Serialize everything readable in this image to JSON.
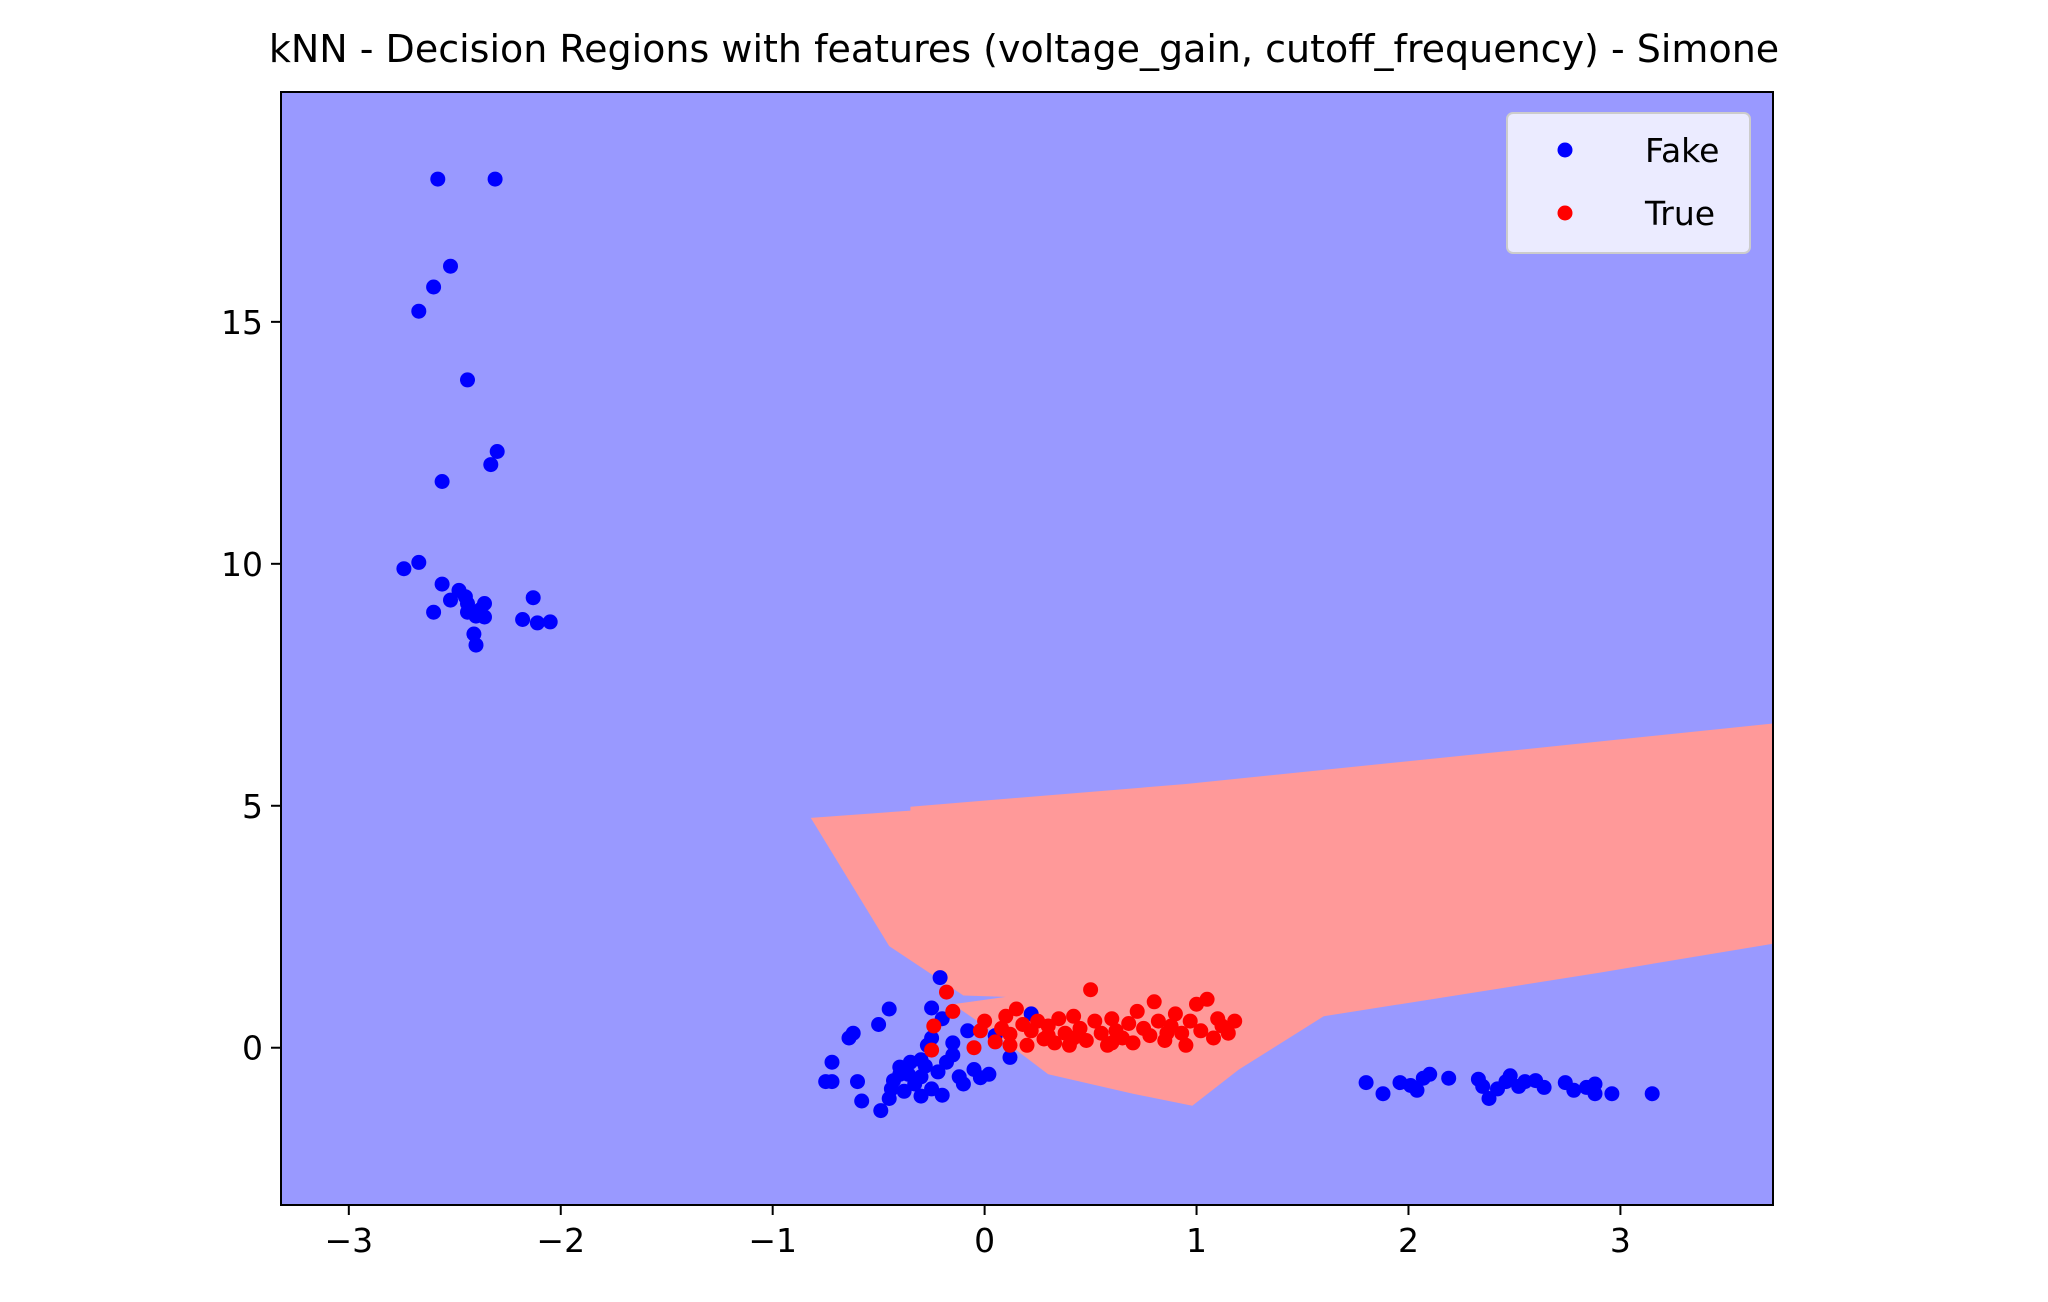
{
  "chart_data": {
    "type": "scatter",
    "title": "kNN - Decision Regions with features (voltage_gain, cutoff_frequency) - Simone",
    "xlabel": "",
    "ylabel": "",
    "xlim": [
      -3.32,
      3.72
    ],
    "ylim": [
      -3.25,
      19.75
    ],
    "x_ticks": [
      -3,
      -2,
      -1,
      0,
      1,
      2,
      3
    ],
    "x_tick_labels": [
      "−3",
      "−2",
      "−1",
      "0",
      "1",
      "2",
      "3"
    ],
    "y_ticks": [
      0,
      5,
      10,
      15
    ],
    "y_tick_labels": [
      "0",
      "5",
      "10",
      "15"
    ],
    "grid": false,
    "legend_position": "upper-right",
    "colors": {
      "background_region": "#9999ff",
      "true_region": "#ff9999",
      "fake_point": "#0000ff",
      "true_point": "#ff0000"
    },
    "decision_region_true": [
      [
        -0.82,
        4.75
      ],
      [
        -0.35,
        4.9
      ],
      [
        -0.35,
        4.98
      ],
      [
        0.95,
        5.45
      ],
      [
        2.4,
        6.1
      ],
      [
        3.72,
        6.7
      ],
      [
        3.72,
        2.15
      ],
      [
        2.9,
        1.55
      ],
      [
        1.6,
        0.65
      ],
      [
        1.2,
        -0.45
      ],
      [
        0.98,
        -1.2
      ],
      [
        0.7,
        -0.95
      ],
      [
        0.3,
        -0.55
      ],
      [
        0.0,
        0.45
      ],
      [
        -0.15,
        0.9
      ],
      [
        0.1,
        1.05
      ],
      [
        -0.1,
        1.08
      ],
      [
        -0.45,
        2.1
      ]
    ],
    "series": [
      {
        "name": "Fake",
        "points": [
          [
            -2.58,
            17.95
          ],
          [
            -2.31,
            17.95
          ],
          [
            -2.52,
            16.15
          ],
          [
            -2.6,
            15.72
          ],
          [
            -2.67,
            15.22
          ],
          [
            -2.44,
            13.8
          ],
          [
            -2.3,
            12.32
          ],
          [
            -2.33,
            12.05
          ],
          [
            -2.56,
            11.7
          ],
          [
            -2.74,
            9.9
          ],
          [
            -2.67,
            10.03
          ],
          [
            -2.56,
            9.58
          ],
          [
            -2.48,
            9.45
          ],
          [
            -2.45,
            9.32
          ],
          [
            -2.52,
            9.25
          ],
          [
            -2.44,
            9.18
          ],
          [
            -2.36,
            9.18
          ],
          [
            -2.38,
            9.05
          ],
          [
            -2.44,
            9.0
          ],
          [
            -2.6,
            9.0
          ],
          [
            -2.4,
            8.92
          ],
          [
            -2.36,
            8.9
          ],
          [
            -2.18,
            8.85
          ],
          [
            -2.11,
            8.78
          ],
          [
            -2.05,
            8.8
          ],
          [
            -2.13,
            9.3
          ],
          [
            -2.41,
            8.55
          ],
          [
            -2.4,
            8.32
          ],
          [
            -0.21,
            1.45
          ],
          [
            -0.25,
            0.82
          ],
          [
            -0.45,
            0.8
          ],
          [
            -0.5,
            0.48
          ],
          [
            -0.62,
            0.3
          ],
          [
            -0.64,
            0.2
          ],
          [
            -0.72,
            -0.3
          ],
          [
            -0.75,
            -0.7
          ],
          [
            -0.72,
            -0.7
          ],
          [
            -0.6,
            -0.7
          ],
          [
            -0.58,
            -1.1
          ],
          [
            -0.49,
            -1.3
          ],
          [
            -0.45,
            -1.05
          ],
          [
            -0.44,
            -0.85
          ],
          [
            -0.43,
            -0.68
          ],
          [
            -0.4,
            -0.4
          ],
          [
            -0.38,
            -0.9
          ],
          [
            -0.36,
            -0.55
          ],
          [
            -0.33,
            -0.75
          ],
          [
            -0.3,
            -1.0
          ],
          [
            -0.3,
            -0.6
          ],
          [
            -0.28,
            -0.38
          ],
          [
            -0.25,
            -0.85
          ],
          [
            -0.25,
            0.2
          ],
          [
            -0.22,
            -0.5
          ],
          [
            -0.2,
            -0.98
          ],
          [
            -0.18,
            -0.3
          ],
          [
            -0.15,
            0.1
          ],
          [
            -0.12,
            -0.6
          ],
          [
            -0.1,
            -0.75
          ],
          [
            -0.08,
            0.35
          ],
          [
            -0.05,
            -0.45
          ],
          [
            -0.02,
            -0.62
          ],
          [
            -0.3,
            -0.25
          ],
          [
            -0.4,
            -0.55
          ],
          [
            0.22,
            0.7
          ],
          [
            0.12,
            -0.2
          ],
          [
            0.05,
            0.25
          ],
          [
            0.02,
            -0.55
          ],
          [
            -0.2,
            0.6
          ],
          [
            -0.15,
            -0.15
          ],
          [
            -0.35,
            -0.3
          ],
          [
            -0.27,
            0.05
          ],
          [
            1.8,
            -0.72
          ],
          [
            1.88,
            -0.95
          ],
          [
            1.96,
            -0.72
          ],
          [
            2.01,
            -0.78
          ],
          [
            2.04,
            -0.88
          ],
          [
            2.07,
            -0.63
          ],
          [
            2.1,
            -0.55
          ],
          [
            2.19,
            -0.63
          ],
          [
            2.33,
            -0.65
          ],
          [
            2.35,
            -0.8
          ],
          [
            2.38,
            -1.05
          ],
          [
            2.42,
            -0.85
          ],
          [
            2.46,
            -0.7
          ],
          [
            2.48,
            -0.58
          ],
          [
            2.52,
            -0.8
          ],
          [
            2.55,
            -0.7
          ],
          [
            2.6,
            -0.68
          ],
          [
            2.64,
            -0.82
          ],
          [
            2.74,
            -0.72
          ],
          [
            2.78,
            -0.88
          ],
          [
            2.84,
            -0.82
          ],
          [
            2.88,
            -0.75
          ],
          [
            2.88,
            -0.95
          ],
          [
            2.96,
            -0.95
          ],
          [
            3.15,
            -0.95
          ]
        ]
      },
      {
        "name": "True",
        "points": [
          [
            -0.18,
            1.15
          ],
          [
            -0.15,
            0.75
          ],
          [
            -0.24,
            0.45
          ],
          [
            -0.25,
            -0.05
          ],
          [
            -0.05,
            0.0
          ],
          [
            -0.02,
            0.35
          ],
          [
            0.0,
            0.55
          ],
          [
            0.05,
            0.12
          ],
          [
            0.08,
            0.4
          ],
          [
            0.1,
            0.65
          ],
          [
            0.12,
            0.28
          ],
          [
            0.15,
            0.8
          ],
          [
            0.18,
            0.48
          ],
          [
            0.2,
            0.05
          ],
          [
            0.22,
            0.35
          ],
          [
            0.25,
            0.55
          ],
          [
            0.28,
            0.18
          ],
          [
            0.3,
            0.45
          ],
          [
            0.33,
            0.1
          ],
          [
            0.35,
            0.6
          ],
          [
            0.38,
            0.3
          ],
          [
            0.4,
            0.05
          ],
          [
            0.42,
            0.65
          ],
          [
            0.45,
            0.4
          ],
          [
            0.48,
            0.15
          ],
          [
            0.5,
            1.2
          ],
          [
            0.52,
            0.55
          ],
          [
            0.55,
            0.3
          ],
          [
            0.58,
            0.05
          ],
          [
            0.6,
            0.6
          ],
          [
            0.62,
            0.35
          ],
          [
            0.65,
            0.2
          ],
          [
            0.68,
            0.5
          ],
          [
            0.7,
            0.1
          ],
          [
            0.72,
            0.75
          ],
          [
            0.75,
            0.4
          ],
          [
            0.78,
            0.25
          ],
          [
            0.8,
            0.95
          ],
          [
            0.82,
            0.55
          ],
          [
            0.85,
            0.15
          ],
          [
            0.88,
            0.45
          ],
          [
            0.9,
            0.7
          ],
          [
            0.93,
            0.3
          ],
          [
            0.95,
            0.05
          ],
          [
            0.97,
            0.55
          ],
          [
            1.0,
            0.9
          ],
          [
            1.02,
            0.35
          ],
          [
            1.05,
            1.0
          ],
          [
            1.08,
            0.2
          ],
          [
            1.1,
            0.6
          ],
          [
            1.12,
            0.45
          ],
          [
            1.15,
            0.3
          ],
          [
            1.18,
            0.55
          ],
          [
            0.3,
            0.25
          ],
          [
            0.42,
            0.2
          ],
          [
            0.6,
            0.1
          ],
          [
            0.86,
            0.3
          ],
          [
            0.12,
            0.05
          ]
        ]
      }
    ],
    "legend": [
      {
        "label": "Fake",
        "color": "#0000ff"
      },
      {
        "label": "True",
        "color": "#ff0000"
      }
    ]
  }
}
